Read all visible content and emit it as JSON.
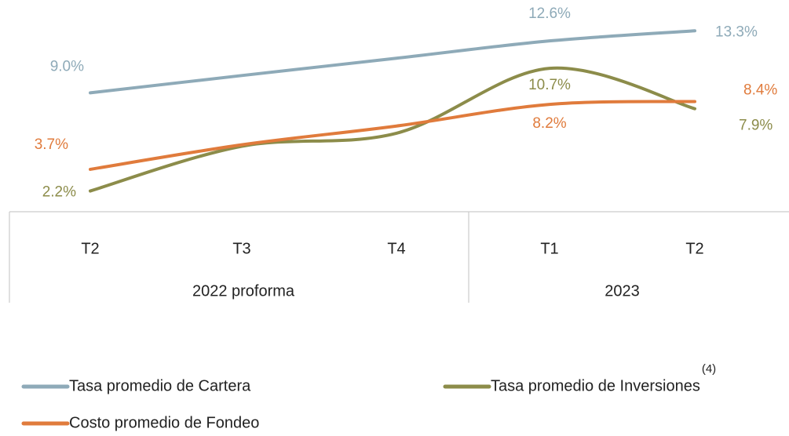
{
  "chart_data": {
    "type": "line",
    "categories": [
      "T2",
      "T3",
      "T4",
      "T1",
      "T2"
    ],
    "groups": [
      {
        "label": "2022 proforma",
        "span": 3
      },
      {
        "label": "2023",
        "span": 2
      }
    ],
    "ylim": [
      0,
      15
    ],
    "series": [
      {
        "name": "Tasa promedio de Cartera",
        "color": "#8eaab8",
        "values": [
          9.0,
          10.2,
          11.4,
          12.6,
          13.3
        ],
        "value_labels": [
          "9.0%",
          null,
          null,
          "12.6%",
          "13.3%"
        ]
      },
      {
        "name": "Tasa promedio de Inversiones",
        "superscript": "(4)",
        "color": "#8c8c4a",
        "values": [
          2.2,
          5.3,
          6.2,
          10.7,
          7.9
        ],
        "value_labels": [
          "2.2%",
          null,
          null,
          "10.7%",
          "7.9%"
        ]
      },
      {
        "name": "Costo promedio de Fondeo",
        "color": "#e07b3c",
        "values": [
          3.7,
          5.4,
          6.7,
          8.2,
          8.4
        ],
        "value_labels": [
          "3.7%",
          null,
          null,
          "8.2%",
          "8.4%"
        ]
      }
    ]
  }
}
